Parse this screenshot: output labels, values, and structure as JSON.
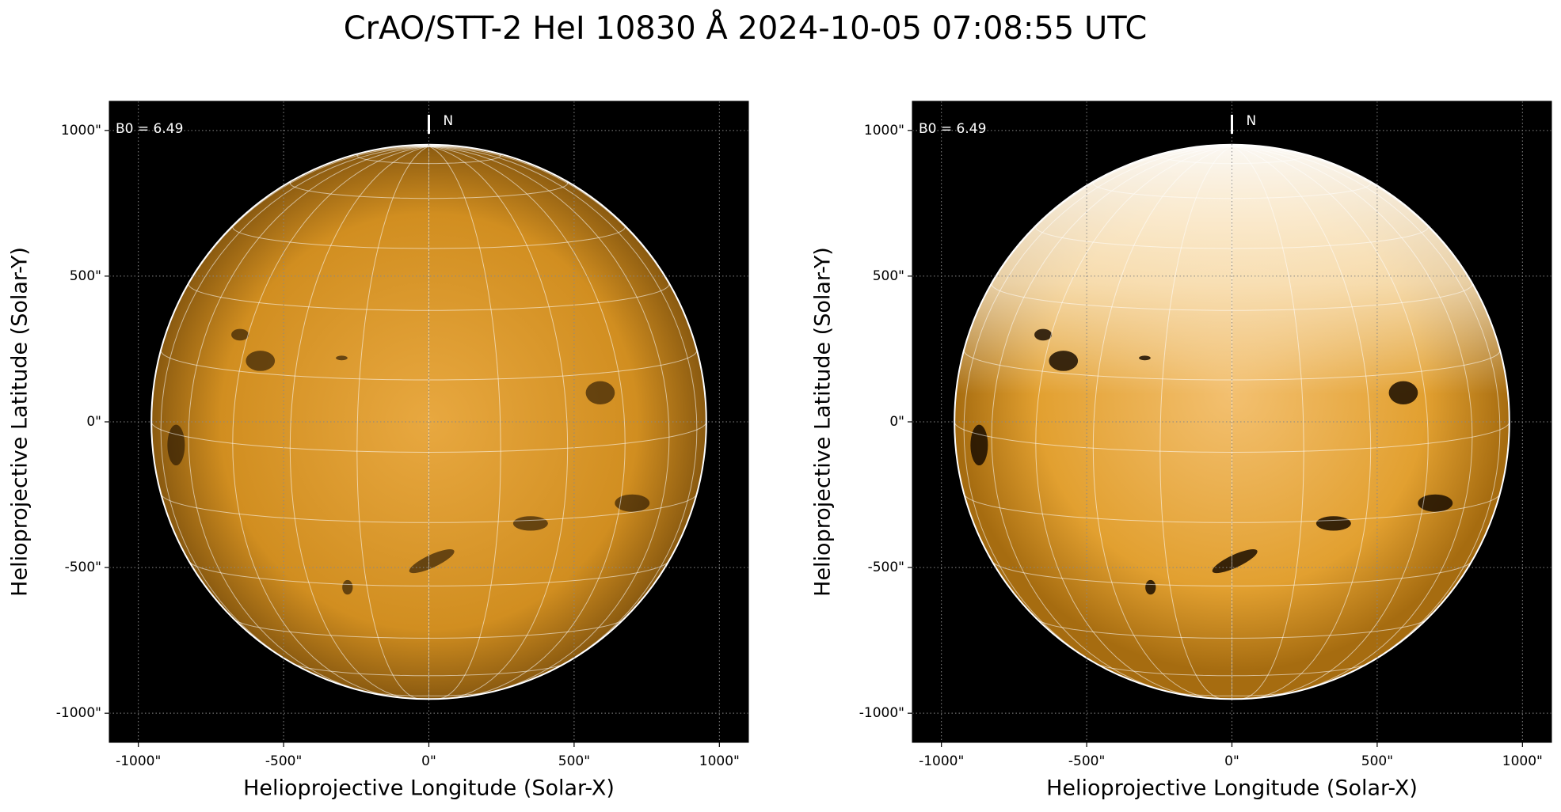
{
  "title": "CrAO/STT-2 HeI 10830 Å 2024-10-05 07:08:55 UTC",
  "chart_data": [
    {
      "type": "image",
      "xlabel": "Helioprojective Longitude (Solar-X)",
      "ylabel": "Helioprojective Latitude (Solar-Y)",
      "b0_label": "B0 = 6.49",
      "north_label": "N",
      "xlim": [
        -1100,
        1100
      ],
      "ylim": [
        -1100,
        1100
      ],
      "xticks": [
        {
          "value": -1000,
          "label": "-1000\""
        },
        {
          "value": -500,
          "label": "-500\""
        },
        {
          "value": 0,
          "label": "0\""
        },
        {
          "value": 500,
          "label": "500\""
        },
        {
          "value": 1000,
          "label": "1000\""
        }
      ],
      "yticks": [
        {
          "value": -1000,
          "label": "-1000\""
        },
        {
          "value": -500,
          "label": "-500\""
        },
        {
          "value": 0,
          "label": "0\""
        },
        {
          "value": 500,
          "label": "500\""
        },
        {
          "value": 1000,
          "label": "1000\""
        }
      ],
      "grid": true
    },
    {
      "type": "image",
      "xlabel": "Helioprojective Longitude (Solar-X)",
      "ylabel": "Helioprojective Latitude (Solar-Y)",
      "b0_label": "B0 = 6.49",
      "north_label": "N",
      "xlim": [
        -1100,
        1100
      ],
      "ylim": [
        -1100,
        1100
      ],
      "xticks": [
        {
          "value": -1000,
          "label": "-1000\""
        },
        {
          "value": -500,
          "label": "-500\""
        },
        {
          "value": 0,
          "label": "0\""
        },
        {
          "value": 500,
          "label": "500\""
        },
        {
          "value": 1000,
          "label": "1000\""
        }
      ],
      "yticks": [
        {
          "value": -1000,
          "label": "-1000\""
        },
        {
          "value": -500,
          "label": "-500\""
        },
        {
          "value": 0,
          "label": "0\""
        },
        {
          "value": 500,
          "label": "500\""
        },
        {
          "value": 1000,
          "label": "1000\""
        }
      ],
      "grid": true
    }
  ]
}
